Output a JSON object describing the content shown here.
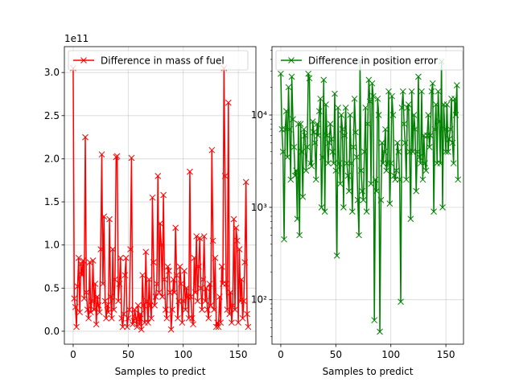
{
  "chart_data": [
    {
      "type": "line",
      "xlabel": "Samples to predict",
      "ylabel": "",
      "y_scale": "linear",
      "y_multiplier_label": "1e11",
      "xlim": [
        -8,
        166
      ],
      "ylim": [
        -0.15,
        3.3
      ],
      "x_ticks": [
        0,
        50,
        100,
        150
      ],
      "x_tick_labels": [
        "0",
        "50",
        "100",
        "150"
      ],
      "y_ticks": [
        0.0,
        0.5,
        1.0,
        1.5,
        2.0,
        2.5,
        3.0
      ],
      "y_tick_labels": [
        "0.0",
        "0.5",
        "1.0",
        "1.5",
        "2.0",
        "2.5",
        "3.0"
      ],
      "grid": true,
      "legend_position": "top-left",
      "color": "#ff0000",
      "marker": "x",
      "series": [
        {
          "name": "Difference in mass of fuel",
          "values": [
            3.05,
            0.38,
            0.28,
            0.05,
            0.52,
            0.85,
            0.22,
            0.78,
            0.65,
            0.82,
            0.38,
            2.25,
            0.45,
            0.25,
            0.15,
            0.8,
            0.22,
            0.35,
            0.82,
            0.25,
            0.55,
            0.08,
            0.4,
            0.3,
            0.22,
            0.95,
            2.05,
            0.55,
            1.33,
            0.35,
            0.15,
            0.3,
            0.22,
            1.3,
            0.4,
            0.15,
            0.95,
            0.25,
            0.6,
            2.02,
            2.03,
            0.35,
            0.55,
            0.85,
            0.15,
            0.05,
            0.2,
            0.65,
            0.85,
            0.05,
            0.15,
            0.25,
            0.95,
            2.01,
            0.08,
            0.12,
            0.25,
            0.15,
            0.05,
            0.3,
            0.08,
            0.2,
            0.02,
            0.65,
            0.3,
            0.1,
            0.92,
            0.35,
            0.1,
            0.6,
            0.3,
            0.15,
            1.55,
            0.8,
            0.3,
            0.4,
            0.55,
            1.8,
            0.45,
            1.25,
            1.0,
            0.4,
            1.58,
            0.6,
            0.25,
            0.15,
            0.75,
            0.7,
            0.45,
            0.02,
            0.25,
            0.6,
            0.45,
            1.2,
            0.65,
            0.15,
            0.35,
            0.75,
            0.55,
            0.1,
            0.35,
            0.7,
            0.25,
            0.5,
            0.4,
            0.15,
            1.85,
            0.4,
            0.15,
            0.08,
            0.85,
            0.45,
            1.1,
            0.35,
            0.75,
            1.08,
            0.5,
            0.25,
            0.6,
            1.1,
            0.35,
            0.5,
            0.25,
            0.15,
            0.55,
            0.3,
            2.1,
            1.05,
            0.25,
            0.85,
            0.05,
            0.1,
            0.05,
            0.4,
            0.1,
            0.75,
            0.55,
            3.05,
            1.8,
            0.55,
            0.25,
            2.65,
            0.2,
            0.45,
            0.1,
            0.3,
            1.3,
            0.25,
            1.2,
            1.05,
            0.1,
            0.95,
            0.35,
            0.6,
            0.15,
            0.35,
            0.8,
            1.73,
            0.2,
            0.05
          ]
        }
      ]
    },
    {
      "type": "line",
      "xlabel": "Samples to predict",
      "ylabel": "",
      "y_scale": "log",
      "xlim": [
        -8,
        166
      ],
      "ylim": [
        33,
        55000
      ],
      "x_ticks": [
        0,
        50,
        100,
        150
      ],
      "x_tick_labels": [
        "0",
        "50",
        "100",
        "150"
      ],
      "y_ticks": [
        100,
        1000,
        10000
      ],
      "y_tick_labels": [
        "10²",
        "10³",
        "10⁴"
      ],
      "grid": true,
      "legend_position": "top-left",
      "color": "#008000",
      "marker": "x",
      "series": [
        {
          "name": "Difference in position error",
          "values": [
            28000,
            7000,
            4000,
            450,
            7000,
            11000,
            3500,
            20000,
            7000,
            2000,
            26000,
            9000,
            4500,
            2200,
            2500,
            750,
            8000,
            500,
            8000,
            4000,
            1300,
            7000,
            6000,
            2500,
            4500,
            28000,
            25000,
            3000,
            2800,
            8500,
            6500,
            5000,
            2000,
            8000,
            6000,
            11000,
            15000,
            1000,
            3500,
            24000,
            900,
            13000,
            6000,
            3000,
            5000,
            8000,
            5500,
            4000,
            3000,
            17000,
            2500,
            300,
            12000,
            3000,
            1800,
            10000,
            7000,
            1000,
            6000,
            12000,
            3000,
            2200,
            1500,
            10000,
            3000,
            900,
            4500,
            15000,
            6500,
            3500,
            1200,
            500,
            38000,
            2500,
            1500,
            1200,
            4000,
            12000,
            900,
            8000,
            24000,
            14000,
            1800,
            22000,
            16000,
            60,
            2000,
            1500,
            15000,
            10000,
            45,
            1200,
            5000,
            3000,
            4000,
            7000,
            2500,
            3000,
            18000,
            1100,
            3000,
            16000,
            10000,
            2200,
            2000,
            2500,
            5000,
            4000,
            2000,
            95,
            12000,
            18000,
            8000,
            5000,
            2000,
            12000,
            13000,
            4000,
            750,
            18000,
            4000,
            10000,
            7000,
            1500,
            4000,
            26000,
            3500,
            3000,
            18000,
            2000,
            6000,
            3000,
            2500,
            6000,
            10000,
            4500,
            6000,
            18000,
            22000,
            900,
            7000,
            13000,
            3000,
            18000,
            8500,
            3000,
            38000,
            1000,
            13000,
            7000,
            4000,
            13000,
            4000,
            5500,
            7000,
            15000,
            5000,
            3000,
            15000,
            10000,
            21000,
            2000
          ]
        }
      ]
    }
  ]
}
